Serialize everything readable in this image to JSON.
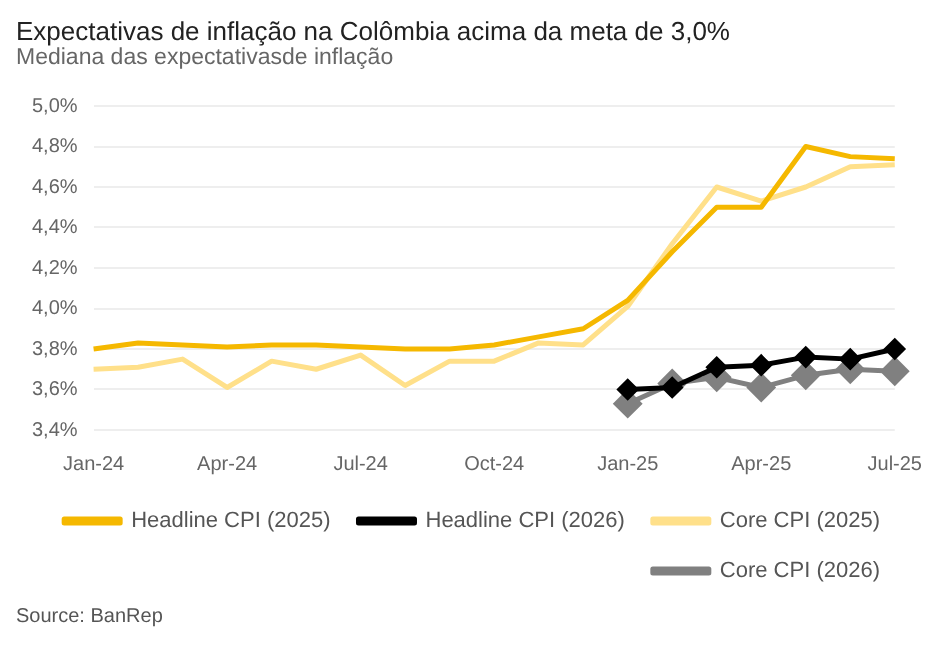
{
  "chart_data": {
    "type": "line",
    "title": "Expectativas de inflação na Colômbia acima da meta de 3,0%",
    "subtitle": "Mediana das expectativasde inflação",
    "categories": [
      "Jan-24",
      null,
      null,
      "Apr-24",
      null,
      null,
      "Jul-24",
      null,
      null,
      "Oct-24",
      null,
      null,
      "Jan-25",
      null,
      null,
      "Apr-25",
      null,
      null,
      "Jul-25"
    ],
    "series": [
      {
        "name": "Headline CPI (2025)",
        "color": "#f5b800",
        "marker": "none",
        "values": [
          3.8,
          3.83,
          3.82,
          3.81,
          3.82,
          3.82,
          3.81,
          3.8,
          3.8,
          3.82,
          3.86,
          3.9,
          4.04,
          4.28,
          4.5,
          4.5,
          4.8,
          4.75,
          4.74
        ]
      },
      {
        "name": "Headline CPI (2026)",
        "color": "#000000",
        "marker": "diamond",
        "values": [
          null,
          null,
          null,
          null,
          null,
          null,
          null,
          null,
          null,
          null,
          null,
          null,
          3.6,
          3.61,
          3.71,
          3.72,
          3.76,
          3.75,
          3.8
        ]
      },
      {
        "name": "Core CPI (2025)",
        "color": "#ffe08a",
        "marker": "none",
        "values": [
          3.7,
          3.71,
          3.75,
          3.61,
          3.74,
          3.7,
          3.77,
          3.62,
          3.74,
          3.74,
          3.83,
          3.82,
          4.01,
          4.32,
          4.6,
          4.53,
          4.6,
          4.7,
          4.71
        ]
      },
      {
        "name": "Core CPI (2026)",
        "color": "#808080",
        "marker": "diamond",
        "values": [
          null,
          null,
          null,
          null,
          null,
          null,
          null,
          null,
          null,
          null,
          null,
          null,
          3.53,
          3.63,
          3.66,
          3.61,
          3.67,
          3.7,
          3.69
        ]
      }
    ],
    "ylim": [
      3.4,
      5.0
    ],
    "yticks": [
      {
        "value": 3.4,
        "label": "3,4%"
      },
      {
        "value": 3.6,
        "label": "3,6%"
      },
      {
        "value": 3.8,
        "label": "3,8%"
      },
      {
        "value": 4.0,
        "label": "4,0%"
      },
      {
        "value": 4.2,
        "label": "4,2%"
      },
      {
        "value": 4.4,
        "label": "4,4%"
      },
      {
        "value": 4.6,
        "label": "4,6%"
      },
      {
        "value": 4.8,
        "label": "4,8%"
      },
      {
        "value": 5.0,
        "label": "5,0%"
      }
    ],
    "grid": "y",
    "legend": "bottom",
    "line_style": "solid",
    "annotations": [
      "Source: BanRep"
    ]
  }
}
